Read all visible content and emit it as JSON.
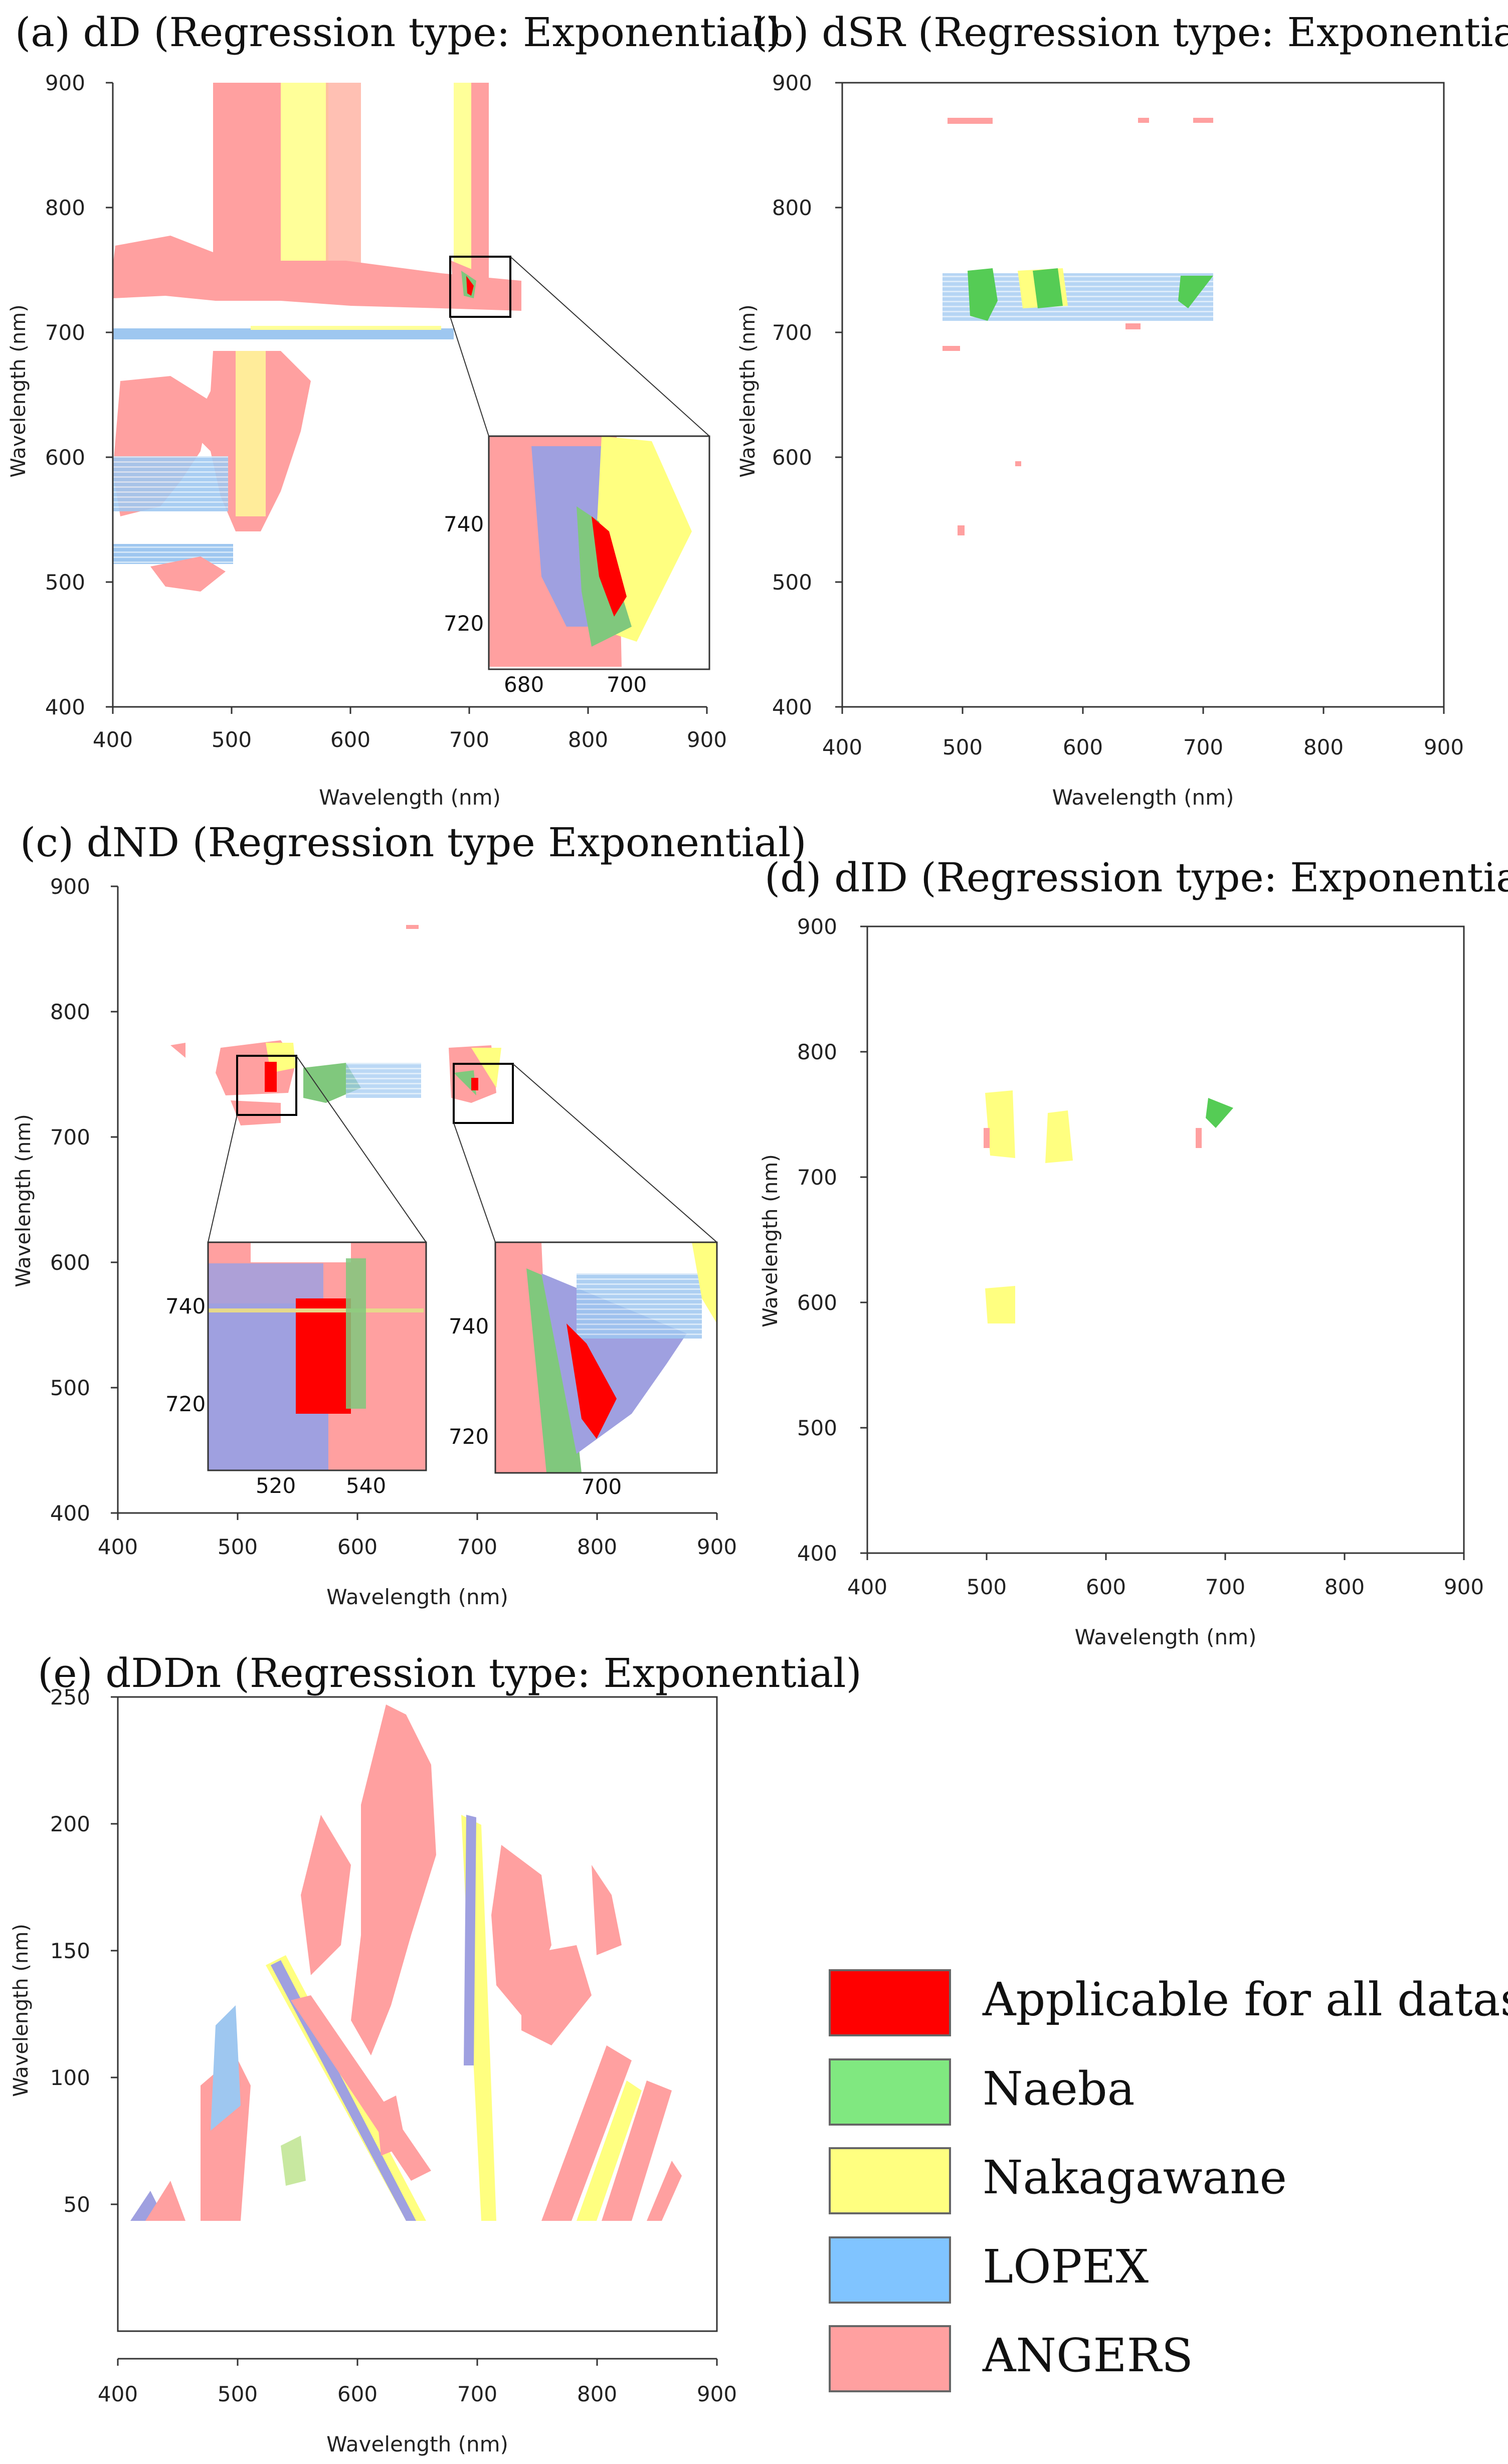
{
  "figure": {
    "panels": [
      {
        "title": "(a) dD (Regression type: Exponential)"
      },
      {
        "title": "(b) dSR (Regression type: Exponential)"
      },
      {
        "title": "(c) dND (Regression type Exponential)"
      },
      {
        "title": "(d) dID (Regression type: Exponential)"
      },
      {
        "title": "(e) dDDn (Regression type: Exponential)"
      }
    ],
    "legend": [
      {
        "label": "Applicable for all datasets",
        "color": "#FF0000"
      },
      {
        "label": "Naeba",
        "color": "#80E880"
      },
      {
        "label": "Nakagawane",
        "color": "#FFFF80"
      },
      {
        "label": "LOPEX",
        "color": "#80C4FF"
      },
      {
        "label": "ANGERS",
        "color": "#FFA0A0"
      }
    ]
  },
  "chart_data": [
    {
      "type": "heatmap",
      "title": "(a) dD (Regression type: Exponential)",
      "xlabel": "Wavelength (nm)",
      "ylabel": "Wavelength (nm)",
      "xlim": [
        400,
        900
      ],
      "ylim": [
        400,
        900
      ],
      "xticks": [
        400,
        500,
        600,
        700,
        800,
        900
      ],
      "yticks": [
        400,
        500,
        600,
        700,
        800,
        900
      ],
      "inset": {
        "xticks": [
          680,
          700
        ],
        "yticks": [
          720,
          740
        ]
      },
      "regions": [
        {
          "dataset": "ANGERS",
          "shape": "band",
          "x": [
            400,
            900
          ],
          "y": [
            718,
            745
          ]
        },
        {
          "dataset": "LOPEX",
          "shape": "band",
          "x": [
            400,
            690
          ],
          "y": [
            694,
            702
          ]
        },
        {
          "dataset": "ANGERS",
          "shape": "band",
          "x": [
            485,
            540
          ],
          "y": [
            745,
            900
          ]
        },
        {
          "dataset": "Nakagawane",
          "shape": "band",
          "x": [
            530,
            570
          ],
          "y": [
            745,
            900
          ]
        },
        {
          "dataset": "Nakagawane",
          "shape": "band",
          "x": [
            680,
            740
          ],
          "y": [
            745,
            900
          ]
        },
        {
          "dataset": "ANGERS",
          "shape": "band",
          "x": [
            690,
            720
          ],
          "y": [
            760,
            900
          ]
        },
        {
          "dataset": "ANGERS",
          "shape": "blob",
          "x": [
            460,
            620
          ],
          "y": [
            540,
            690
          ]
        },
        {
          "dataset": "LOPEX",
          "shape": "blob",
          "x": [
            400,
            510
          ],
          "y": [
            560,
            640
          ]
        },
        {
          "dataset": "LOPEX",
          "shape": "blob",
          "x": [
            400,
            480
          ],
          "y": [
            515,
            530
          ]
        },
        {
          "dataset": "ANGERS",
          "shape": "blob",
          "x": [
            430,
            480
          ],
          "y": [
            495,
            520
          ]
        },
        {
          "dataset": "Applicable for all datasets",
          "shape": "spot",
          "x": [
            700,
            710
          ],
          "y": [
            725,
            740
          ]
        }
      ]
    },
    {
      "type": "heatmap",
      "title": "(b) dSR (Regression type: Exponential)",
      "xlabel": "Wavelength (nm)",
      "ylabel": "Wavelength (nm)",
      "xlim": [
        400,
        900
      ],
      "ylim": [
        400,
        900
      ],
      "xticks": [
        400,
        500,
        600,
        700,
        800,
        900
      ],
      "yticks": [
        400,
        500,
        600,
        700,
        800,
        900
      ],
      "regions": [
        {
          "dataset": "Naeba",
          "shape": "blob",
          "x": [
            520,
            545
          ],
          "y": [
            708,
            742
          ]
        },
        {
          "dataset": "Naeba",
          "shape": "blob",
          "x": [
            575,
            605
          ],
          "y": [
            710,
            742
          ]
        },
        {
          "dataset": "Naeba",
          "shape": "blob",
          "x": [
            700,
            725
          ],
          "y": [
            712,
            738
          ]
        },
        {
          "dataset": "LOPEX",
          "shape": "scatter",
          "x": [
            510,
            700
          ],
          "y": [
            705,
            742
          ]
        },
        {
          "dataset": "ANGERS",
          "shape": "spot",
          "x": [
            600,
            700
          ],
          "y": [
            865,
            872
          ]
        },
        {
          "dataset": "ANGERS",
          "shape": "spot",
          "x": [
            660,
            700
          ],
          "y": [
            695,
            705
          ]
        },
        {
          "dataset": "ANGERS",
          "shape": "spot",
          "x": [
            600,
            640
          ],
          "y": [
            680,
            690
          ]
        },
        {
          "dataset": "ANGERS",
          "shape": "spot",
          "x": [
            610,
            640
          ],
          "y": [
            525,
            540
          ]
        }
      ]
    },
    {
      "type": "heatmap",
      "title": "(c) dND (Regression type Exponential)",
      "xlabel": "Wavelength (nm)",
      "ylabel": "Wavelength (nm)",
      "xlim": [
        400,
        900
      ],
      "ylim": [
        400,
        900
      ],
      "xticks": [
        400,
        500,
        600,
        700,
        800,
        900
      ],
      "yticks": [
        400,
        500,
        600,
        700,
        800,
        900
      ],
      "insets": [
        {
          "xticks": [
            520,
            540
          ],
          "yticks": [
            720,
            740
          ]
        },
        {
          "xticks": [
            700
          ],
          "yticks": [
            720,
            740
          ]
        }
      ],
      "regions": [
        {
          "dataset": "ANGERS",
          "shape": "blob",
          "x": [
            500,
            550
          ],
          "y": [
            715,
            755
          ]
        },
        {
          "dataset": "Nakagawane",
          "shape": "blob",
          "x": [
            530,
            560
          ],
          "y": [
            730,
            755
          ]
        },
        {
          "dataset": "Naeba",
          "shape": "blob",
          "x": [
            560,
            620
          ],
          "y": [
            710,
            735
          ]
        },
        {
          "dataset": "ANGERS",
          "shape": "blob",
          "x": [
            695,
            725
          ],
          "y": [
            715,
            760
          ]
        },
        {
          "dataset": "Applicable for all datasets",
          "shape": "spot",
          "x": [
            525,
            540
          ],
          "y": [
            720,
            740
          ]
        },
        {
          "dataset": "Applicable for all datasets",
          "shape": "spot",
          "x": [
            700,
            712
          ],
          "y": [
            720,
            735
          ]
        }
      ]
    },
    {
      "type": "heatmap",
      "title": "(d) dID (Regression type: Exponential)",
      "xlabel": "Wavelength (nm)",
      "ylabel": "Wavelength (nm)",
      "xlim": [
        400,
        900
      ],
      "ylim": [
        400,
        900
      ],
      "xticks": [
        400,
        500,
        600,
        700,
        800,
        900
      ],
      "yticks": [
        400,
        500,
        600,
        700,
        800,
        900
      ],
      "regions": [
        {
          "dataset": "Nakagawane",
          "shape": "blob",
          "x": [
            510,
            535
          ],
          "y": [
            700,
            755
          ]
        },
        {
          "dataset": "Nakagawane",
          "shape": "blob",
          "x": [
            565,
            590
          ],
          "y": [
            695,
            740
          ]
        },
        {
          "dataset": "Naeba",
          "shape": "blob",
          "x": [
            700,
            725
          ],
          "y": [
            725,
            745
          ]
        },
        {
          "dataset": "Nakagawane",
          "shape": "blob",
          "x": [
            510,
            535
          ],
          "y": [
            560,
            590
          ]
        },
        {
          "dataset": "ANGERS",
          "shape": "spot",
          "x": [
            695,
            705
          ],
          "y": [
            705,
            720
          ]
        },
        {
          "dataset": "ANGERS",
          "shape": "spot",
          "x": [
            505,
            515
          ],
          "y": [
            710,
            725
          ]
        }
      ]
    },
    {
      "type": "heatmap",
      "title": "(e) dDDn (Regression type: Exponential)",
      "xlabel": "Wavelength (nm)",
      "ylabel": "Wavelength (nm)",
      "xlim": [
        400,
        900
      ],
      "ylim": [
        0,
        250
      ],
      "xticks": [
        400,
        500,
        600,
        700,
        800,
        900
      ],
      "yticks": [
        50,
        100,
        150,
        200,
        250
      ],
      "regions": [
        {
          "dataset": "ANGERS",
          "shape": "blob",
          "x": [
            600,
            760
          ],
          "y": [
            50,
            245
          ]
        },
        {
          "dataset": "Nakagawane",
          "shape": "band",
          "x": [
            690,
            720
          ],
          "y": [
            50,
            210
          ]
        },
        {
          "dataset": "Nakagawane",
          "shape": "band",
          "x": [
            520,
            640
          ],
          "y": [
            50,
            160
          ]
        },
        {
          "dataset": "LOPEX",
          "shape": "blob",
          "x": [
            470,
            510
          ],
          "y": [
            50,
            130
          ]
        },
        {
          "dataset": "ANGERS",
          "shape": "blob",
          "x": [
            400,
            500
          ],
          "y": [
            50,
            150
          ]
        },
        {
          "dataset": "ANGERS",
          "shape": "band",
          "x": [
            760,
            870
          ],
          "y": [
            50,
            130
          ]
        },
        {
          "dataset": "ANGERS",
          "shape": "blob",
          "x": [
            790,
            840
          ],
          "y": [
            100,
            200
          ]
        }
      ]
    }
  ]
}
